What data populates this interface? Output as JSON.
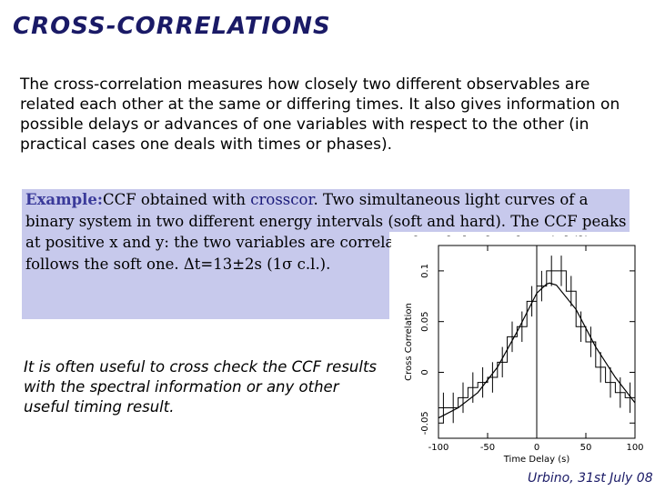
{
  "slide": {
    "title": "CROSS-CORRELATIONS",
    "intro": "The cross-correlation measures how closely two different  observables are related each other at the same or differing times. It also gives information on possible delays or advances of one variables with respect to the other (in practical cases one deals with times or phases).",
    "example_label": "Example:",
    "example_text_1": "CCF obtained with ",
    "example_highlight": "crosscor",
    "example_text_2": ". Two simultaneous light curves of a binary system in two different energy intervals (soft and hard). The CCF peaks at positive x and y: the two variables are correlated and the hard variability follows the soft one. Δt=13±2s (1σ c.l.).",
    "note": "It is often useful to cross check the CCF results with the spectral information or any other useful timing result.",
    "footer": "Urbino, 31st July 08"
  },
  "plot_labels": {
    "ylabel": "Cross Correlation",
    "xlabel": "Time Delay (s)",
    "yticks": [
      "0.1",
      "0.05",
      "0",
      "-0.05"
    ],
    "xticks": [
      "-100",
      "-50",
      "0",
      "50",
      "100"
    ]
  },
  "chart_data": {
    "type": "line",
    "xlabel": "Time Delay (s)",
    "ylabel": "Cross Correlation",
    "xlim": [
      -100,
      100
    ],
    "ylim": [
      -0.065,
      0.125
    ],
    "series": [
      {
        "style": "step-with-errorbars",
        "x": [
          -95,
          -85,
          -75,
          -65,
          -55,
          -45,
          -35,
          -25,
          -15,
          -5,
          5,
          15,
          25,
          35,
          45,
          55,
          65,
          75,
          85,
          95
        ],
        "y": [
          -0.035,
          -0.035,
          -0.025,
          -0.015,
          -0.01,
          -0.005,
          0.01,
          0.035,
          0.045,
          0.07,
          0.085,
          0.1,
          0.1,
          0.08,
          0.045,
          0.03,
          0.005,
          -0.01,
          -0.02,
          -0.025
        ],
        "yerr": 0.015
      },
      {
        "style": "smooth-fit",
        "x": [
          -100,
          -80,
          -60,
          -40,
          -20,
          0,
          10,
          13,
          20,
          40,
          60,
          80,
          100
        ],
        "y": [
          -0.045,
          -0.035,
          -0.02,
          0.005,
          0.04,
          0.078,
          0.087,
          0.088,
          0.086,
          0.062,
          0.025,
          -0.005,
          -0.03
        ]
      }
    ],
    "vertical_line_x": 0
  }
}
